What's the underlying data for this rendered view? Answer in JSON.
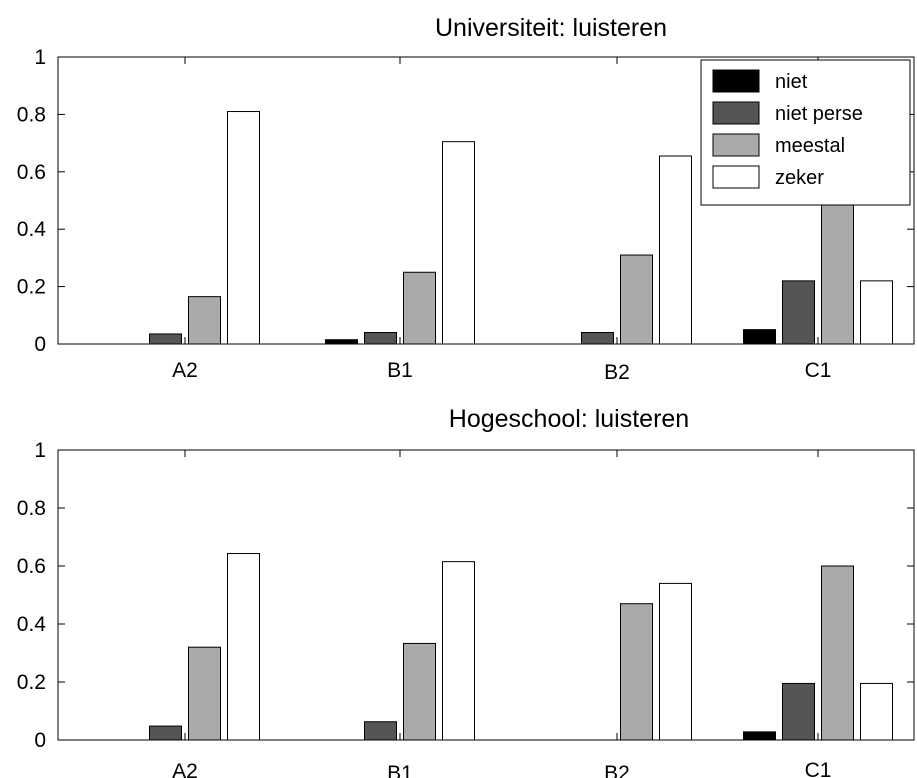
{
  "legend": {
    "placement": "top-right",
    "entries": [
      "niet",
      "niet perse",
      "meestal",
      "zeker"
    ]
  },
  "colors": {
    "niet": "#000000",
    "niet perse": "#555555",
    "meestal": "#aaaaaa",
    "zeker": "#ffffff"
  },
  "chart_data": [
    {
      "type": "bar",
      "title": "Universiteit: luisteren",
      "categories": [
        "A2",
        "B1",
        "B2",
        "C1"
      ],
      "ylim": [
        0,
        1
      ],
      "yticks": [
        0,
        0.2,
        0.4,
        0.6,
        0.8,
        1
      ],
      "ytick_labels": [
        "0",
        "0.2",
        "0.4",
        "0.6",
        "0.8",
        "1"
      ],
      "grid": false,
      "series": [
        {
          "name": "niet",
          "values": [
            0,
            0.015,
            0,
            0.05
          ]
        },
        {
          "name": "niet perse",
          "values": [
            0.035,
            0.04,
            0.04,
            0.22
          ]
        },
        {
          "name": "meestal",
          "values": [
            0.165,
            0.25,
            0.31,
            0.5
          ]
        },
        {
          "name": "zeker",
          "values": [
            0.81,
            0.705,
            0.655,
            0.22
          ]
        }
      ]
    },
    {
      "type": "bar",
      "title": "Hogeschool: luisteren",
      "categories": [
        "A2",
        "B1",
        "B2",
        "C1"
      ],
      "ylim": [
        0,
        1
      ],
      "yticks": [
        0,
        0.2,
        0.4,
        0.6,
        0.8,
        1
      ],
      "ytick_labels": [
        "0",
        "0.2",
        "0.4",
        "0.6",
        "0.8",
        "1"
      ],
      "grid": false,
      "series": [
        {
          "name": "niet",
          "values": [
            0,
            0,
            0,
            0.028
          ]
        },
        {
          "name": "niet perse",
          "values": [
            0.048,
            0.063,
            0,
            0.195
          ]
        },
        {
          "name": "meestal",
          "values": [
            0.32,
            0.333,
            0.47,
            0.6
          ]
        },
        {
          "name": "zeker",
          "values": [
            0.643,
            0.615,
            0.54,
            0.195
          ]
        }
      ]
    }
  ]
}
